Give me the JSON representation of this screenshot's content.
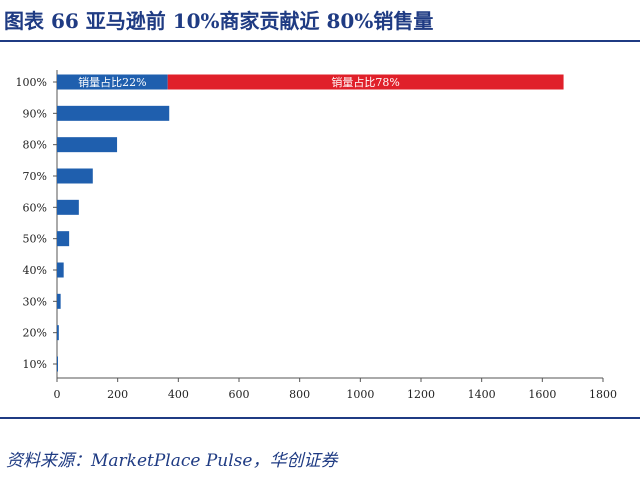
{
  "figure": {
    "title": "图表 66 亚马逊前 10%商家贡献近 80%销售量",
    "source": "资料来源：MarketPlace Pulse，华创证券"
  },
  "colors": {
    "primary_bar": "#1f5fae",
    "highlight_bar": "#e0202a",
    "title_blue": "#1f3b83"
  },
  "chart_data": {
    "type": "bar",
    "orientation": "horizontal",
    "categories": [
      "10%",
      "20%",
      "30%",
      "40%",
      "50%",
      "60%",
      "70%",
      "80%",
      "90%",
      "100%"
    ],
    "values": [
      3,
      6,
      12,
      22,
      40,
      72,
      118,
      198,
      370,
      1670
    ],
    "segments_top_bar": [
      {
        "name": "销量占比22%",
        "value": 365
      },
      {
        "name": "销量占比78%",
        "value": 1305
      }
    ],
    "xlim": [
      0,
      1800
    ],
    "xticks": [
      0,
      200,
      400,
      600,
      800,
      1000,
      1200,
      1400,
      1600,
      1800
    ],
    "grid": false
  }
}
